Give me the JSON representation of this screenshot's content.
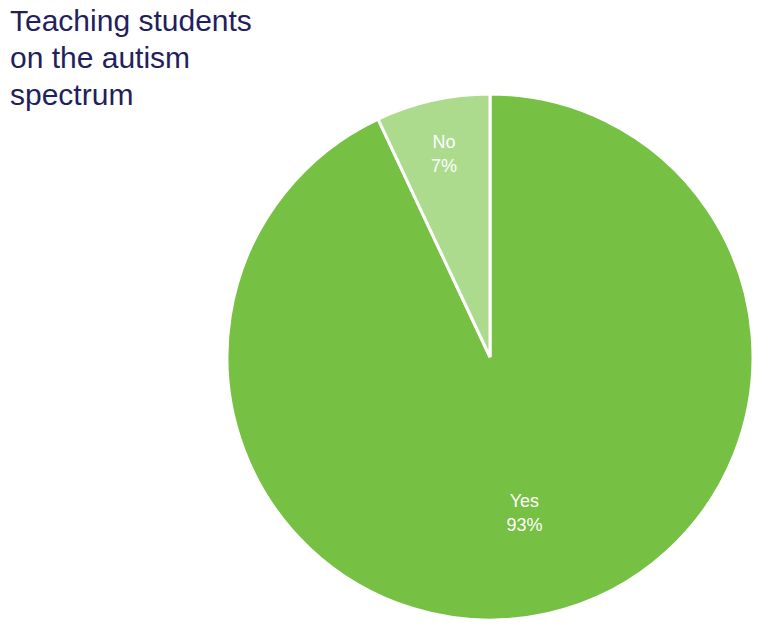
{
  "chart_data": {
    "type": "pie",
    "title": "Teaching students on the autism spectrum",
    "categories": [
      "Yes",
      "No"
    ],
    "values": [
      93,
      7
    ],
    "value_labels": [
      "93%",
      "7%"
    ],
    "colors": [
      "#76c043",
      "#acdb8e"
    ],
    "data_labels": true
  }
}
